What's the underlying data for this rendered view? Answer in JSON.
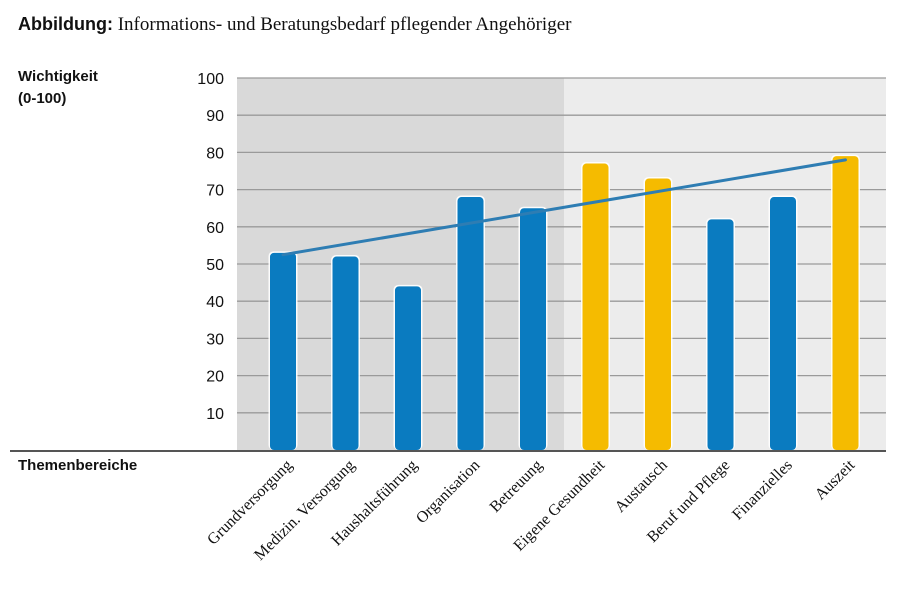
{
  "figure": {
    "title_prefix": "Abbildung:",
    "title_text": "Informations- und Beratungsbedarf pflegender Angehöriger"
  },
  "colors": {
    "blue": "#0a7bc0",
    "yellow": "#f5bb00",
    "trend": "#2e7db3",
    "shade_left": "#d9d9d9",
    "shade_right": "#ececec"
  },
  "chart_data": {
    "type": "bar",
    "ylabel_line1": "Wichtigkeit",
    "ylabel_line2": "(0-100)",
    "xlabel": "Themenbereiche",
    "ylim": [
      0,
      100
    ],
    "yticks": [
      10,
      20,
      30,
      40,
      50,
      60,
      70,
      80,
      90,
      100
    ],
    "grid": true,
    "categories": [
      "Grundversorgung",
      "Medizin. Versorgung",
      "Haushaltsführung",
      "Organisation",
      "Betreuung",
      "Eigene Gesundheit",
      "Austausch",
      "Beruf und Pflege",
      "Finanzielles",
      "Auszeit"
    ],
    "values": [
      53,
      52,
      44,
      68,
      65,
      77,
      73,
      62,
      68,
      79
    ],
    "highlight": [
      false,
      false,
      false,
      false,
      false,
      true,
      true,
      false,
      false,
      true
    ],
    "shaded_regions": [
      {
        "from_category": 0,
        "to_category": 4,
        "shade": "darker"
      },
      {
        "from_category": 5,
        "to_category": 9,
        "shade": "lighter"
      }
    ],
    "trendline": {
      "start": 52.5,
      "end": 78
    }
  }
}
